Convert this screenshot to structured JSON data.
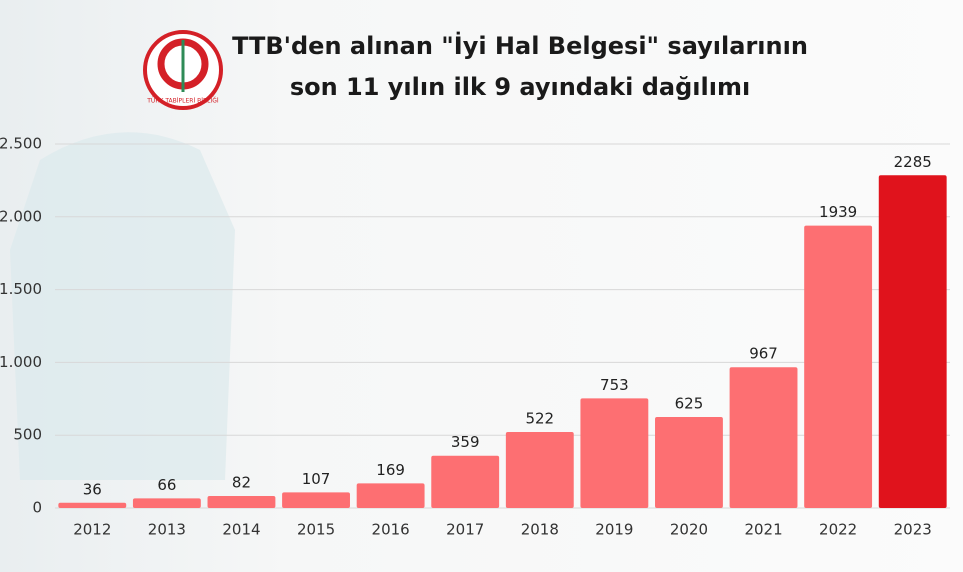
{
  "chart_data": {
    "type": "bar",
    "title_lines": [
      "TTB'den alınan \"İyi Hal Belgesi\" sayılarının",
      "son 11 yılın ilk 9 ayındaki dağılımı"
    ],
    "logo_text": "TÜRK TABİPLERİ BİRLİĞİ",
    "categories": [
      "2012",
      "2013",
      "2014",
      "2015",
      "2016",
      "2017",
      "2018",
      "2019",
      "2020",
      "2021",
      "2022",
      "2023"
    ],
    "values": [
      36,
      66,
      82,
      107,
      169,
      359,
      522,
      753,
      625,
      967,
      1939,
      2285
    ],
    "colors": [
      "#fd6f72",
      "#fd6f72",
      "#fd6f72",
      "#fd6f72",
      "#fd6f72",
      "#fd6f72",
      "#fd6f72",
      "#fd6f72",
      "#fd6f72",
      "#fd6f72",
      "#fd6f72",
      "#e0131c"
    ],
    "ylim": [
      0,
      2500
    ],
    "yticks": [
      0,
      500,
      {
        "value": 1000,
        "label": "1.000"
      },
      {
        "value": 1500,
        "label": "1.500"
      },
      {
        "value": 2000,
        "label": "2.000"
      },
      {
        "value": 2500,
        "label": "2.500"
      }
    ],
    "grid": true
  }
}
